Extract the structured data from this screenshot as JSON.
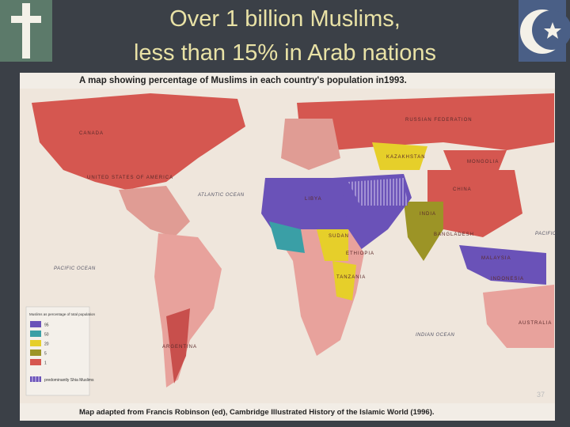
{
  "header": {
    "title_line1": "Over 1 billion Muslims,",
    "title_line2": "less than 15% in Arab nations"
  },
  "map": {
    "caption": "A map showing percentage of Muslims in each country's population in1993.",
    "source": "Map adapted from Francis Robinson (ed), Cambridge Illustrated History of the Islamic World (1996).",
    "labels": [
      "CANADA",
      "UNITED STATES OF AMERICA",
      "ATLANTIC OCEAN",
      "PACIFIC OCEAN",
      "RUSSIAN FEDERATION",
      "MONGOLIA",
      "CHINA",
      "KAZAKHSTAN",
      "INDIA",
      "BANGLADESH",
      "MALAYSIA",
      "INDONESIA",
      "AUSTRALIA",
      "INDIAN OCEAN",
      "ARGENTINA",
      "LIBYA",
      "SUDAN",
      "ETHIOPIA",
      "TANZANIA",
      "PACIFIC"
    ],
    "legend": {
      "title": "Muslims as percentage of total population",
      "items": [
        {
          "label": "95",
          "color": "#6a52b8"
        },
        {
          "label": "50",
          "color": "#3a9fa6"
        },
        {
          "label": "20",
          "color": "#e6cf2a"
        },
        {
          "label": "5",
          "color": "#9c9426"
        },
        {
          "label": "1",
          "color": "#d6564f"
        }
      ],
      "shia": "predominantly Shia Muslims"
    }
  },
  "page_number": "37"
}
